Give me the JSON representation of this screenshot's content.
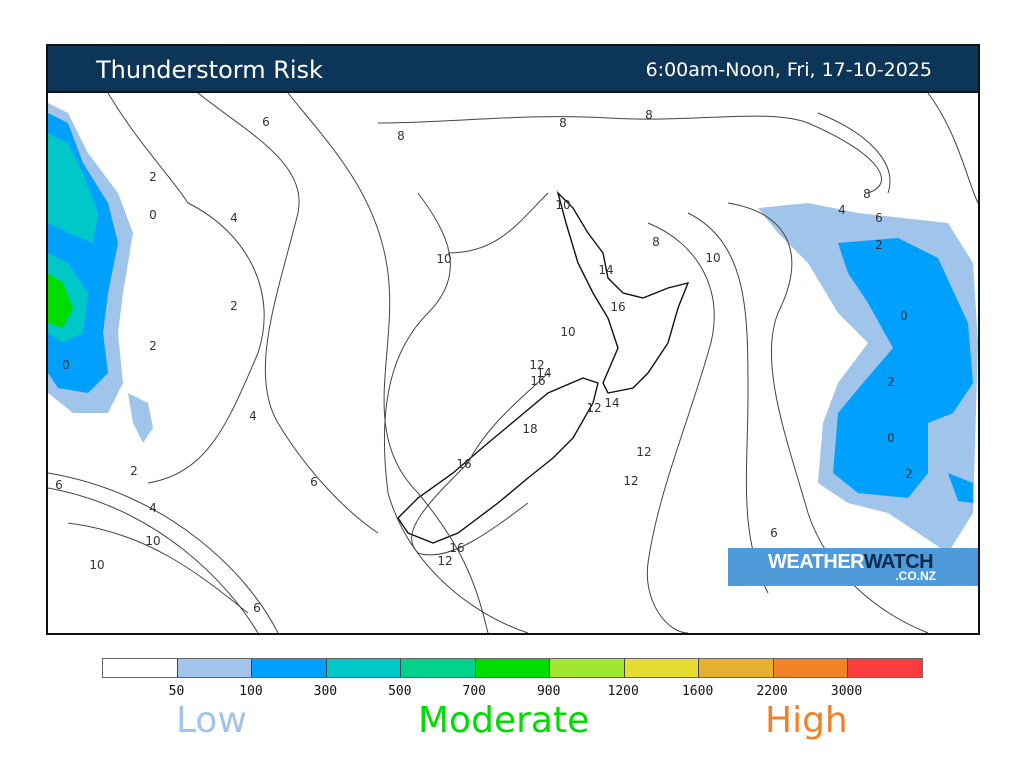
{
  "header": {
    "title": "Thunderstorm Risk",
    "period": "6:00am-Noon, Fri, 17-10-2025"
  },
  "logo": {
    "brand_part1": "WEATHER",
    "brand_part2": "WATCH",
    "domain": ".CO.NZ"
  },
  "legend": {
    "colors": [
      "#ffffff",
      "#a0c4ea",
      "#00a0ff",
      "#00c8c8",
      "#00d28c",
      "#00dc00",
      "#a0e632",
      "#e6dc32",
      "#e6af2d",
      "#f08228",
      "#fa3c3c"
    ],
    "thresholds": [
      "50",
      "100",
      "300",
      "500",
      "700",
      "900",
      "1200",
      "1600",
      "2200",
      "3000"
    ],
    "categories": [
      {
        "label": "Low",
        "color": "#a0c4ea"
      },
      {
        "label": "Moderate",
        "color": "#00dc00"
      },
      {
        "label": "High",
        "color": "#f08228"
      }
    ]
  },
  "map": {
    "contour_labels": [
      "6",
      "8",
      "8",
      "8",
      "2",
      "0",
      "4",
      "10",
      "8",
      "10",
      "10",
      "8",
      "4",
      "6",
      "2",
      "14",
      "2",
      "16",
      "0",
      "10",
      "2",
      "0",
      "12",
      "14",
      "16",
      "2",
      "12",
      "14",
      "4",
      "18",
      "0",
      "12",
      "16",
      "2",
      "2",
      "6",
      "6",
      "12",
      "4",
      "6",
      "10",
      "16",
      "12",
      "10",
      "6"
    ]
  }
}
